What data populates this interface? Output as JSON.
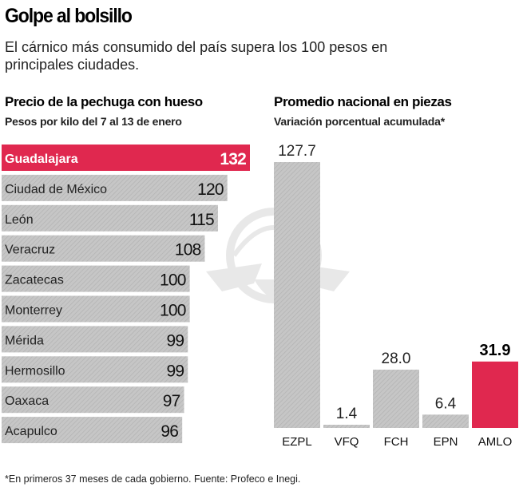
{
  "header": {
    "title": "Golpe al bolsillo",
    "subtitle": "El cárnico más consumido del país supera los 100 pesos en principales ciudades."
  },
  "colors": {
    "highlight": "#e0284f",
    "bar_gray": "#c6c6c6",
    "hatch": "#b2b2b2"
  },
  "chart_data": [
    {
      "type": "bar",
      "orientation": "horizontal",
      "title": "Precio de la pechuga con hueso",
      "subtitle": "Pesos por kilo del 7 al 13 de enero",
      "categories": [
        "Guadalajara",
        "Ciudad de México",
        "León",
        "Veracruz",
        "Zacatecas",
        "Monterrey",
        "Mérida",
        "Hermosillo",
        "Oaxaca",
        "Acapulco"
      ],
      "values": [
        132,
        120,
        115,
        108,
        100,
        100,
        99,
        99,
        97,
        96
      ],
      "highlight": "Guadalajara",
      "xlim": [
        0,
        132
      ]
    },
    {
      "type": "bar",
      "orientation": "vertical",
      "title": "Promedio nacional en piezas",
      "subtitle": "Variación porcentual acumulada*",
      "categories": [
        "EZPL",
        "VFQ",
        "FCH",
        "EPN",
        "AMLO"
      ],
      "values": [
        127.7,
        1.4,
        28.0,
        6.4,
        31.9
      ],
      "value_labels": [
        "127.7",
        "1.4",
        "28.0",
        "6.4",
        "31.9"
      ],
      "highlight": "AMLO",
      "ylim": [
        0,
        127.7
      ]
    }
  ],
  "footnote": "*En primeros 37 meses de cada gobierno. Fuente: Profeco e Inegi."
}
